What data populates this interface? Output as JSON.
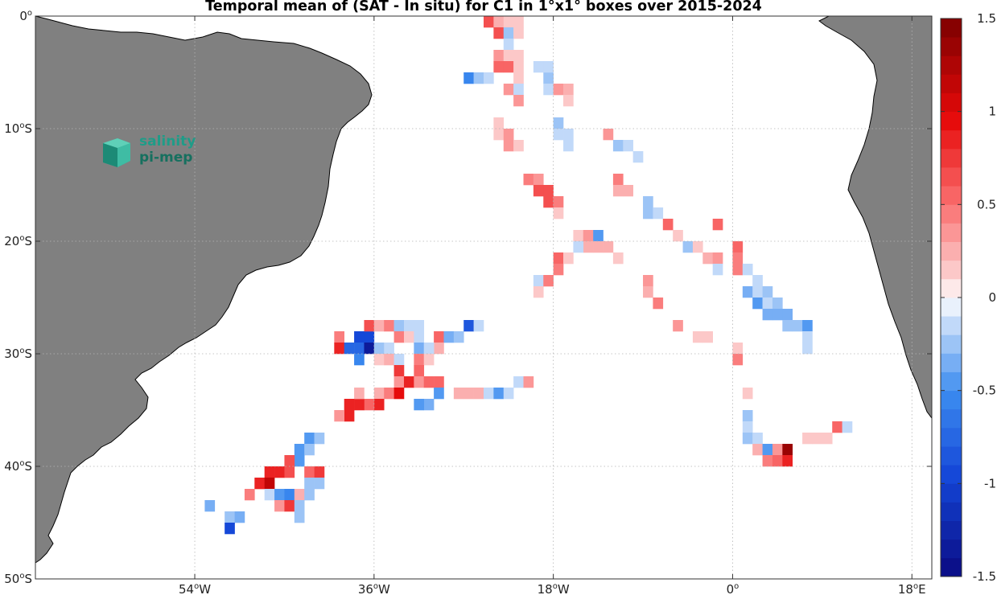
{
  "logo": {
    "line1": "salinity",
    "line2": "pi-mep"
  },
  "colors": {
    "land": "#808080",
    "coast": "#000000",
    "grid": "#c8c8c8",
    "ocean": "#ffffff"
  },
  "chart_data": {
    "type": "heatmap",
    "title": "Temporal mean of (SAT - In situ) for C1 in 1°x1° boxes over 2015-2024",
    "xlim": [
      -70,
      20
    ],
    "ylim": [
      -50,
      0
    ],
    "x_ticks": [
      {
        "value": -54,
        "num": "54",
        "dir": "W"
      },
      {
        "value": -36,
        "num": "36",
        "dir": "W"
      },
      {
        "value": -18,
        "num": "18",
        "dir": "W"
      },
      {
        "value": 0,
        "num": "0",
        "dir": ""
      },
      {
        "value": 18,
        "num": "18",
        "dir": "E"
      }
    ],
    "y_ticks": [
      {
        "value": 0,
        "num": "0",
        "dir": ""
      },
      {
        "value": -10,
        "num": "10",
        "dir": "S"
      },
      {
        "value": -20,
        "num": "20",
        "dir": "S"
      },
      {
        "value": -30,
        "num": "30",
        "dir": "S"
      },
      {
        "value": -40,
        "num": "40",
        "dir": "S"
      },
      {
        "value": -50,
        "num": "50",
        "dir": "S"
      }
    ],
    "grid": true,
    "colorbar": {
      "range": [
        -1.5,
        1.5
      ],
      "levels": 30,
      "ticks": [
        {
          "value": 1.5,
          "label": "1.5"
        },
        {
          "value": 1,
          "label": "1"
        },
        {
          "value": 0.5,
          "label": "0.5"
        },
        {
          "value": 0,
          "label": "0"
        },
        {
          "value": -0.5,
          "label": "-0.5"
        },
        {
          "value": -1,
          "label": "-1"
        },
        {
          "value": -1.5,
          "label": "-1.5"
        }
      ]
    },
    "cells": [
      [
        -24.5,
        -0.5,
        0.65
      ],
      [
        -23.5,
        -0.5,
        0.25
      ],
      [
        -23.5,
        -1.5,
        0.65
      ],
      [
        -22.5,
        -0.5,
        0.15
      ],
      [
        -22.5,
        -1.5,
        -0.25
      ],
      [
        -21.5,
        -0.5,
        0.15
      ],
      [
        -21.5,
        -1.5,
        0.15
      ],
      [
        -22.5,
        -2.5,
        -0.15
      ],
      [
        -23.5,
        -3.5,
        0.35
      ],
      [
        -22.5,
        -3.5,
        0.15
      ],
      [
        -21.5,
        -3.5,
        0.15
      ],
      [
        -23.5,
        -4.5,
        0.55
      ],
      [
        -22.5,
        -4.5,
        0.55
      ],
      [
        -21.5,
        -4.5,
        0.15
      ],
      [
        -26.5,
        -5.5,
        -0.55
      ],
      [
        -25.5,
        -5.5,
        -0.25
      ],
      [
        -24.5,
        -5.5,
        -0.15
      ],
      [
        -21.5,
        -5.5,
        0.15
      ],
      [
        -22.5,
        -6.5,
        0.35
      ],
      [
        -21.5,
        -6.5,
        -0.15
      ],
      [
        -21.5,
        -7.5,
        0.35
      ],
      [
        -19.5,
        -4.5,
        -0.15
      ],
      [
        -18.5,
        -5.5,
        -0.25
      ],
      [
        -18.5,
        -4.5,
        -0.15
      ],
      [
        -18.5,
        -6.5,
        -0.15
      ],
      [
        -17.5,
        -6.5,
        0.35
      ],
      [
        -16.5,
        -6.5,
        0.25
      ],
      [
        -16.5,
        -7.5,
        0.15
      ],
      [
        -23.5,
        -9.5,
        0.15
      ],
      [
        -23.5,
        -10.5,
        0.15
      ],
      [
        -22.5,
        -10.5,
        0.35
      ],
      [
        -22.5,
        -11.5,
        0.35
      ],
      [
        -21.5,
        -11.5,
        0.15
      ],
      [
        -17.5,
        -9.5,
        -0.25
      ],
      [
        -17.5,
        -10.5,
        -0.15
      ],
      [
        -16.5,
        -10.5,
        -0.15
      ],
      [
        -16.5,
        -11.5,
        -0.15
      ],
      [
        -12.5,
        -10.5,
        0.35
      ],
      [
        -11.5,
        -11.5,
        -0.25
      ],
      [
        -10.5,
        -11.5,
        -0.15
      ],
      [
        -9.5,
        -12.5,
        -0.15
      ],
      [
        -20.5,
        -14.5,
        0.45
      ],
      [
        -19.5,
        -14.5,
        0.35
      ],
      [
        -19.5,
        -15.5,
        0.65
      ],
      [
        -18.5,
        -15.5,
        0.65
      ],
      [
        -18.5,
        -16.5,
        0.65
      ],
      [
        -17.5,
        -16.5,
        0.45
      ],
      [
        -17.5,
        -17.5,
        0.15
      ],
      [
        -11.5,
        -14.5,
        0.45
      ],
      [
        -11.5,
        -15.5,
        0.25
      ],
      [
        -10.5,
        -15.5,
        0.25
      ],
      [
        -8.5,
        -16.5,
        -0.25
      ],
      [
        -8.5,
        -17.5,
        -0.25
      ],
      [
        -7.5,
        -17.5,
        -0.15
      ],
      [
        -6.5,
        -18.5,
        0.55
      ],
      [
        -5.5,
        -19.5,
        0.15
      ],
      [
        -4.5,
        -20.5,
        -0.25
      ],
      [
        -3.5,
        -20.5,
        0.15
      ],
      [
        -1.5,
        -18.5,
        0.55
      ],
      [
        -2.5,
        -21.5,
        0.25
      ],
      [
        -1.5,
        -21.5,
        0.35
      ],
      [
        -1.5,
        -22.5,
        -0.15
      ],
      [
        0.5,
        -20.5,
        0.55
      ],
      [
        0.5,
        -21.5,
        0.45
      ],
      [
        0.5,
        -22.5,
        0.45
      ],
      [
        -15.5,
        -19.5,
        0.15
      ],
      [
        -14.5,
        -19.5,
        0.35
      ],
      [
        -14.5,
        -20.5,
        0.25
      ],
      [
        -13.5,
        -19.5,
        -0.45
      ],
      [
        -13.5,
        -20.5,
        0.25
      ],
      [
        -12.5,
        -20.5,
        0.25
      ],
      [
        -11.5,
        -21.5,
        0.15
      ],
      [
        -17.5,
        -21.5,
        0.55
      ],
      [
        -17.5,
        -22.5,
        0.45
      ],
      [
        -16.5,
        -21.5,
        0.15
      ],
      [
        -15.5,
        -20.5,
        -0.15
      ],
      [
        -19.5,
        -23.5,
        -0.15
      ],
      [
        -19.5,
        -24.5,
        0.15
      ],
      [
        -18.5,
        -23.5,
        0.45
      ],
      [
        -8.5,
        -23.5,
        0.35
      ],
      [
        -8.5,
        -24.5,
        0.25
      ],
      [
        -7.5,
        -25.5,
        0.45
      ],
      [
        1.5,
        -22.5,
        -0.15
      ],
      [
        2.5,
        -23.5,
        -0.15
      ],
      [
        1.5,
        -24.5,
        -0.35
      ],
      [
        2.5,
        -24.5,
        -0.15
      ],
      [
        3.5,
        -24.5,
        -0.25
      ],
      [
        2.5,
        -25.5,
        -0.45
      ],
      [
        3.5,
        -25.5,
        -0.15
      ],
      [
        4.5,
        -25.5,
        -0.25
      ],
      [
        3.5,
        -26.5,
        -0.35
      ],
      [
        4.5,
        -26.5,
        -0.35
      ],
      [
        5.5,
        -26.5,
        -0.35
      ],
      [
        5.5,
        -27.5,
        -0.25
      ],
      [
        6.5,
        -27.5,
        -0.25
      ],
      [
        7.5,
        -27.5,
        -0.45
      ],
      [
        7.5,
        -28.5,
        -0.15
      ],
      [
        7.5,
        -29.5,
        -0.15
      ],
      [
        -5.5,
        -27.5,
        0.35
      ],
      [
        -3.5,
        -28.5,
        0.15
      ],
      [
        -2.5,
        -28.5,
        0.15
      ],
      [
        0.5,
        -29.5,
        0.15
      ],
      [
        0.5,
        -30.5,
        0.45
      ],
      [
        -39.5,
        -28.5,
        0.45
      ],
      [
        -39.5,
        -29.5,
        0.85
      ],
      [
        -38.5,
        -29.5,
        -0.75
      ],
      [
        -37.5,
        -28.5,
        -0.95
      ],
      [
        -36.5,
        -28.5,
        -0.95
      ],
      [
        -37.5,
        -29.5,
        -0.75
      ],
      [
        -37.5,
        -30.5,
        -0.55
      ],
      [
        -36.5,
        -29.5,
        -1.35
      ],
      [
        -35.5,
        -29.5,
        -0.25
      ],
      [
        -34.5,
        -29.5,
        -0.15
      ],
      [
        -36.5,
        -27.5,
        0.65
      ],
      [
        -35.5,
        -27.5,
        0.25
      ],
      [
        -34.5,
        -27.5,
        0.45
      ],
      [
        -33.5,
        -27.5,
        -0.25
      ],
      [
        -32.5,
        -27.5,
        -0.15
      ],
      [
        -31.5,
        -27.5,
        -0.15
      ],
      [
        -33.5,
        -28.5,
        0.45
      ],
      [
        -32.5,
        -28.5,
        0.15
      ],
      [
        -31.5,
        -28.5,
        -0.15
      ],
      [
        -35.5,
        -30.5,
        0.15
      ],
      [
        -34.5,
        -30.5,
        0.25
      ],
      [
        -33.5,
        -30.5,
        -0.15
      ],
      [
        -29.5,
        -28.5,
        0.55
      ],
      [
        -28.5,
        -28.5,
        -0.35
      ],
      [
        -27.5,
        -28.5,
        -0.25
      ],
      [
        -26.5,
        -27.5,
        -0.85
      ],
      [
        -25.5,
        -27.5,
        -0.15
      ],
      [
        -29.5,
        -29.5,
        0.25
      ],
      [
        -31.5,
        -29.5,
        -0.35
      ],
      [
        -30.5,
        -29.5,
        -0.15
      ],
      [
        -31.5,
        -30.5,
        0.45
      ],
      [
        -30.5,
        -30.5,
        0.15
      ],
      [
        -33.5,
        -31.5,
        0.75
      ],
      [
        -33.5,
        -32.5,
        0.35
      ],
      [
        -32.5,
        -32.5,
        0.85
      ],
      [
        -31.5,
        -31.5,
        0.55
      ],
      [
        -31.5,
        -32.5,
        0.35
      ],
      [
        -30.5,
        -32.5,
        0.55
      ],
      [
        -29.5,
        -32.5,
        0.55
      ],
      [
        -29.5,
        -33.5,
        -0.45
      ],
      [
        -30.5,
        -34.5,
        -0.35
      ],
      [
        -31.5,
        -34.5,
        -0.45
      ],
      [
        -35.5,
        -33.5,
        0.25
      ],
      [
        -34.5,
        -33.5,
        0.45
      ],
      [
        -33.5,
        -33.5,
        0.95
      ],
      [
        -35.5,
        -34.5,
        0.85
      ],
      [
        -36.5,
        -34.5,
        0.55
      ],
      [
        -37.5,
        -34.5,
        0.85
      ],
      [
        -37.5,
        -33.5,
        0.25
      ],
      [
        -38.5,
        -34.5,
        0.85
      ],
      [
        -38.5,
        -35.5,
        0.85
      ],
      [
        -39.5,
        -35.5,
        0.35
      ],
      [
        -27.5,
        -33.5,
        0.25
      ],
      [
        -26.5,
        -33.5,
        0.25
      ],
      [
        -25.5,
        -33.5,
        0.25
      ],
      [
        -24.5,
        -33.5,
        -0.15
      ],
      [
        -23.5,
        -33.5,
        -0.45
      ],
      [
        -22.5,
        -33.5,
        -0.15
      ],
      [
        -21.5,
        -32.5,
        -0.15
      ],
      [
        -20.5,
        -32.5,
        0.35
      ],
      [
        -42.5,
        -37.5,
        -0.45
      ],
      [
        -41.5,
        -37.5,
        -0.25
      ],
      [
        -43.5,
        -38.5,
        -0.45
      ],
      [
        -42.5,
        -38.5,
        -0.25
      ],
      [
        -43.5,
        -39.5,
        -0.45
      ],
      [
        -46.5,
        -40.5,
        0.85
      ],
      [
        -45.5,
        -40.5,
        0.85
      ],
      [
        -44.5,
        -40.5,
        0.65
      ],
      [
        -44.5,
        -39.5,
        0.65
      ],
      [
        -47.5,
        -41.5,
        0.85
      ],
      [
        -46.5,
        -41.5,
        1.15
      ],
      [
        -48.5,
        -42.5,
        0.45
      ],
      [
        -46.5,
        -42.5,
        -0.15
      ],
      [
        -45.5,
        -42.5,
        -0.45
      ],
      [
        -44.5,
        -42.5,
        -0.55
      ],
      [
        -43.5,
        -42.5,
        0.25
      ],
      [
        -42.5,
        -42.5,
        -0.25
      ],
      [
        -45.5,
        -43.5,
        0.35
      ],
      [
        -44.5,
        -43.5,
        0.75
      ],
      [
        -43.5,
        -43.5,
        -0.25
      ],
      [
        -43.5,
        -44.5,
        -0.25
      ],
      [
        -42.5,
        -40.5,
        0.55
      ],
      [
        -41.5,
        -40.5,
        0.75
      ],
      [
        -42.5,
        -41.5,
        -0.25
      ],
      [
        -41.5,
        -41.5,
        -0.25
      ],
      [
        -52.5,
        -43.5,
        -0.35
      ],
      [
        -50.5,
        -44.5,
        -0.25
      ],
      [
        -49.5,
        -44.5,
        -0.35
      ],
      [
        -50.5,
        -45.5,
        -0.95
      ],
      [
        1.5,
        -33.5,
        0.15
      ],
      [
        1.5,
        -35.5,
        -0.25
      ],
      [
        1.5,
        -36.5,
        -0.15
      ],
      [
        1.5,
        -37.5,
        -0.25
      ],
      [
        2.5,
        -37.5,
        -0.15
      ],
      [
        2.5,
        -38.5,
        0.25
      ],
      [
        3.5,
        -38.5,
        -0.45
      ],
      [
        4.5,
        -38.5,
        0.35
      ],
      [
        5.5,
        -38.5,
        1.35
      ],
      [
        3.5,
        -39.5,
        0.45
      ],
      [
        4.5,
        -39.5,
        0.55
      ],
      [
        5.5,
        -39.5,
        0.85
      ],
      [
        7.5,
        -37.5,
        0.15
      ],
      [
        8.5,
        -37.5,
        0.15
      ],
      [
        9.5,
        -37.5,
        0.15
      ],
      [
        10.5,
        -36.5,
        0.55
      ],
      [
        11.5,
        -36.5,
        -0.15
      ]
    ]
  }
}
